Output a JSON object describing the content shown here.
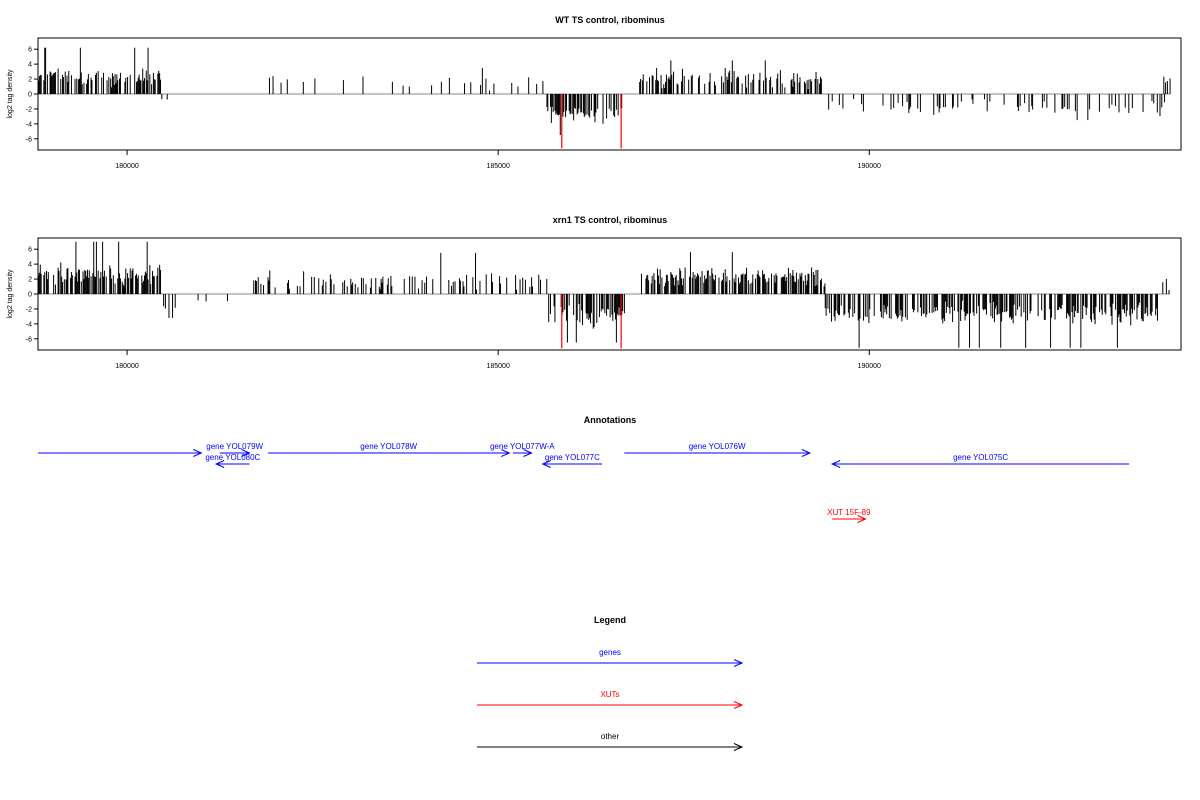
{
  "colors": {
    "bar": "#000000",
    "highlight": "#ff0000",
    "gene": "#0000ff",
    "xut": "#ff0000",
    "other": "#000000"
  },
  "chart_data": [
    {
      "type": "bar",
      "title": "WT TS control, ribominus",
      "ylabel": "log2 tag density",
      "xlim": [
        178800,
        194200
      ],
      "ylim": [
        -7.5,
        7.5
      ],
      "x_ticks": [
        180000,
        185000,
        190000
      ],
      "x_tick_labels": [
        "180000",
        "185000",
        "190000"
      ],
      "y_ticks": [
        -6,
        -4,
        -2,
        0,
        2,
        4,
        6
      ],
      "y_tick_labels": [
        "-6",
        "-4",
        "-2",
        "0",
        "2",
        "4",
        "6"
      ],
      "highlight_bars": [
        {
          "x": 185850,
          "y": -7.3
        },
        {
          "x": 186650,
          "y": -7.3
        }
      ],
      "regions": [
        {
          "x_start": 178800,
          "x_end": 180450,
          "density": 0.55,
          "sign": 1,
          "mean": 2.2,
          "spread": 0.9,
          "max": 6.2
        },
        {
          "x_start": 180450,
          "x_end": 180600,
          "density": 0.15,
          "sign": -1,
          "mean": 0.9,
          "spread": 0.3,
          "max": 1.5
        },
        {
          "x_start": 180950,
          "x_end": 181500,
          "density": 0.02,
          "sign": -1,
          "mean": 1.6,
          "spread": 0.6,
          "max": 2.5
        },
        {
          "x_start": 181900,
          "x_end": 185650,
          "density": 0.09,
          "sign": 1,
          "mean": 1.5,
          "spread": 0.8,
          "max": 3.5
        },
        {
          "x_start": 185650,
          "x_end": 186700,
          "density": 0.5,
          "sign": -1,
          "mean": 2.8,
          "spread": 1.0,
          "max": 5.5
        },
        {
          "x_start": 186900,
          "x_end": 189350,
          "density": 0.4,
          "sign": 1,
          "mean": 2.0,
          "spread": 0.9,
          "max": 4.5
        },
        {
          "x_start": 189350,
          "x_end": 194000,
          "density": 0.16,
          "sign": -1,
          "mean": 1.7,
          "spread": 0.8,
          "max": 3.5
        },
        {
          "x_start": 193950,
          "x_end": 194050,
          "density": 0.3,
          "sign": 1,
          "mean": 1.8,
          "spread": 0.4,
          "max": 2.4
        }
      ]
    },
    {
      "type": "bar",
      "title": "xrn1 TS control, ribominus",
      "ylabel": "log2 tag density",
      "xlim": [
        178800,
        194200
      ],
      "ylim": [
        -7.5,
        7.5
      ],
      "x_ticks": [
        180000,
        185000,
        190000
      ],
      "x_tick_labels": [
        "180000",
        "185000",
        "190000"
      ],
      "y_ticks": [
        -6,
        -4,
        -2,
        0,
        2,
        4,
        6
      ],
      "y_tick_labels": [
        "-6",
        "-4",
        "-2",
        "0",
        "2",
        "4",
        "6"
      ],
      "highlight_bars": [
        {
          "x": 185850,
          "y": -7.3
        },
        {
          "x": 186650,
          "y": -7.3
        }
      ],
      "regions": [
        {
          "x_start": 178800,
          "x_end": 180450,
          "density": 0.7,
          "sign": 1,
          "mean": 2.6,
          "spread": 1.0,
          "max": 7.0
        },
        {
          "x_start": 180450,
          "x_end": 180650,
          "density": 0.3,
          "sign": -1,
          "mean": 1.8,
          "spread": 0.8,
          "max": 3.2
        },
        {
          "x_start": 180950,
          "x_end": 181500,
          "density": 0.03,
          "sign": -1,
          "mean": 1.0,
          "spread": 0.5,
          "max": 2.0
        },
        {
          "x_start": 181700,
          "x_end": 185650,
          "density": 0.28,
          "sign": 1,
          "mean": 1.7,
          "spread": 0.8,
          "max": 5.5
        },
        {
          "x_start": 185650,
          "x_end": 186700,
          "density": 0.6,
          "sign": -1,
          "mean": 3.0,
          "spread": 1.1,
          "max": 6.5
        },
        {
          "x_start": 186900,
          "x_end": 189400,
          "density": 0.7,
          "sign": 1,
          "mean": 2.3,
          "spread": 0.9,
          "max": 5.6
        },
        {
          "x_start": 189400,
          "x_end": 193900,
          "density": 0.6,
          "sign": -1,
          "mean": 2.6,
          "spread": 1.0,
          "max": 7.2
        },
        {
          "x_start": 193900,
          "x_end": 194050,
          "density": 0.3,
          "sign": 1,
          "mean": 1.5,
          "spread": 0.8,
          "max": 3.4
        }
      ]
    }
  ],
  "annotations": {
    "title": "Annotations",
    "xlim": [
      178800,
      194200
    ],
    "features": [
      {
        "label": "",
        "kind": "gene",
        "strand": "+",
        "start": 178800,
        "end": 181000,
        "row": 0
      },
      {
        "label": "gene YOL079W",
        "kind": "gene",
        "strand": "+",
        "start": 181250,
        "end": 181650,
        "row": 0
      },
      {
        "label": "gene YOL080C",
        "kind": "gene",
        "strand": "-",
        "start": 181200,
        "end": 181650,
        "row": 1
      },
      {
        "label": "gene YOL078W",
        "kind": "gene",
        "strand": "+",
        "start": 181900,
        "end": 185150,
        "row": 0
      },
      {
        "label": "gene YOL077W-A",
        "kind": "gene",
        "strand": "+",
        "start": 185200,
        "end": 185450,
        "row": 0
      },
      {
        "label": "gene YOL077C",
        "kind": "gene",
        "strand": "-",
        "start": 185600,
        "end": 186400,
        "row": 1
      },
      {
        "label": "gene YOL076W",
        "kind": "gene",
        "strand": "+",
        "start": 186700,
        "end": 189200,
        "row": 0
      },
      {
        "label": "gene YOL075C",
        "kind": "gene",
        "strand": "-",
        "start": 189500,
        "end": 193500,
        "row": 1
      },
      {
        "label": "XUT 15F-89",
        "kind": "xut",
        "strand": "+",
        "start": 189500,
        "end": 189950,
        "row": 6
      }
    ]
  },
  "legend": {
    "title": "Legend",
    "items": [
      {
        "label": "genes",
        "kind": "gene"
      },
      {
        "label": "XUTs",
        "kind": "xut"
      },
      {
        "label": "other",
        "kind": "other"
      }
    ]
  }
}
